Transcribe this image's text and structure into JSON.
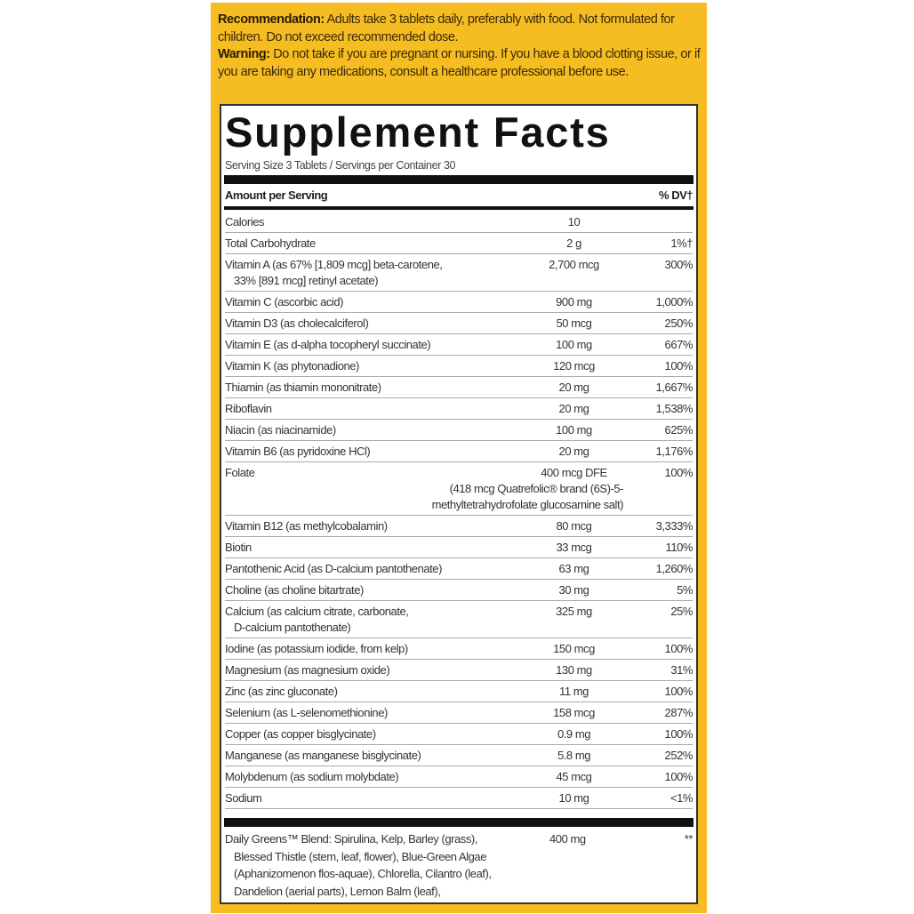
{
  "colors": {
    "label_background": "#f6bd22",
    "panel_background": "#ffffff",
    "rule": "#111111"
  },
  "recommendation": {
    "label": "Recommendation:",
    "text": " Adults take 3 tablets daily, preferably with food. Not formulated for children. Do not exceed recommended dose."
  },
  "warning": {
    "label": "Warning:",
    "text": " Do not take if you are pregnant or nursing. If you have a blood clotting issue, or if you are taking any medications, consult a healthcare professional before use."
  },
  "facts": {
    "title": "Supplement Facts",
    "serving": "Serving Size 3 Tablets / Servings per Container 30",
    "header_amount": "Amount per Serving",
    "header_dv": "% DV†",
    "rows": [
      {
        "name": "Calories",
        "amount": "10",
        "dv": ""
      },
      {
        "name": "Total Carbohydrate",
        "amount": "2 g",
        "dv": "1%†"
      },
      {
        "name": "Vitamin A (as 67% [1,809 mcg] beta-carotene,",
        "cont": "33% [891 mcg] retinyl acetate)",
        "amount": "2,700 mcg",
        "dv": "300%"
      },
      {
        "name": "Vitamin C (ascorbic acid)",
        "amount": "900 mg",
        "dv": "1,000%"
      },
      {
        "name": "Vitamin D3 (as cholecalciferol)",
        "amount": "50 mcg",
        "dv": "250%"
      },
      {
        "name": "Vitamin E (as d-alpha tocopheryl succinate)",
        "amount": "100 mg",
        "dv": "667%"
      },
      {
        "name": "Vitamin K (as phytonadione)",
        "amount": "120 mcg",
        "dv": "100%"
      },
      {
        "name": "Thiamin (as thiamin mononitrate)",
        "amount": "20 mg",
        "dv": "1,667%"
      },
      {
        "name": "Riboflavin",
        "amount": "20 mg",
        "dv": "1,538%"
      },
      {
        "name": "Niacin (as niacinamide)",
        "amount": "100 mg",
        "dv": "625%"
      },
      {
        "name": "Vitamin B6 (as pyridoxine HCl)",
        "amount": "20 mg",
        "dv": "1,176%"
      },
      {
        "name": "Folate",
        "amount": "400 mcg DFE",
        "dv": "100%",
        "sub1": "(418 mcg Quatrefolic® brand (6S)-5-",
        "sub2": "methyltetrahydrofolate glucosamine salt)"
      },
      {
        "name": "Vitamin B12 (as methylcobalamin)",
        "amount": "80 mcg",
        "dv": "3,333%"
      },
      {
        "name": "Biotin",
        "amount": "33 mcg",
        "dv": "110%"
      },
      {
        "name": "Pantothenic Acid (as D-calcium pantothenate)",
        "amount": "63 mg",
        "dv": "1,260%"
      },
      {
        "name": "Choline (as choline bitartrate)",
        "amount": "30 mg",
        "dv": "5%"
      },
      {
        "name": "Calcium (as calcium citrate, carbonate,",
        "cont": "D-calcium pantothenate)",
        "amount": "325 mg",
        "dv": "25%"
      },
      {
        "name": "Iodine (as potassium iodide, from kelp)",
        "amount": "150 mcg",
        "dv": "100%"
      },
      {
        "name": "Magnesium (as magnesium oxide)",
        "amount": "130 mg",
        "dv": "31%"
      },
      {
        "name": "Zinc (as zinc gluconate)",
        "amount": "11 mg",
        "dv": "100%"
      },
      {
        "name": "Selenium (as L-selenomethionine)",
        "amount": "158 mcg",
        "dv": "287%"
      },
      {
        "name": "Copper (as copper bisglycinate)",
        "amount": "0.9 mg",
        "dv": "100%"
      },
      {
        "name": "Manganese (as manganese bisglycinate)",
        "amount": "5.8 mg",
        "dv": "252%"
      },
      {
        "name": "Molybdenum (as sodium molybdate)",
        "amount": "45 mcg",
        "dv": "100%"
      },
      {
        "name": "Sodium",
        "amount": "10 mg",
        "dv": "<1%"
      }
    ],
    "blend": {
      "line1": "Daily Greens™ Blend: Spirulina, Kelp, Barley (grass),",
      "line2": "Blessed Thistle (stem, leaf, flower), Blue-Green Algae",
      "line3": "(Aphanizomenon flos-aquae), Chlorella, Cilantro (leaf),",
      "line4": "Dandelion (aerial parts), Lemon Balm (leaf),",
      "amount": "400 mg",
      "dv": "**"
    }
  }
}
